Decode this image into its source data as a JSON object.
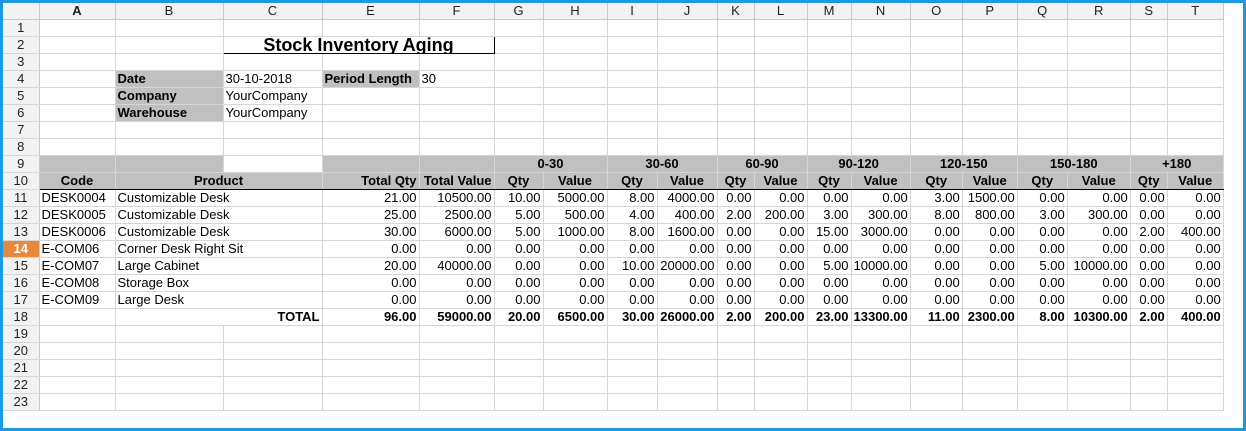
{
  "columns": [
    "A",
    "B",
    "C",
    "E",
    "F",
    "G",
    "H",
    "I",
    "J",
    "K",
    "L",
    "M",
    "N",
    "O",
    "P",
    "Q",
    "R",
    "S",
    "T"
  ],
  "rows": [
    "1",
    "2",
    "3",
    "4",
    "5",
    "6",
    "7",
    "8",
    "9",
    "10",
    "11",
    "12",
    "13",
    "14",
    "15",
    "16",
    "17",
    "18",
    "19",
    "20",
    "21",
    "22",
    "23"
  ],
  "selected": {
    "column": "A",
    "row": "14"
  },
  "title": "Stock Inventory Aging",
  "info": {
    "date_label": "Date",
    "date_value": "30-10-2018",
    "company_label": "Company",
    "company_value": "YourCompany",
    "warehouse_label": "Warehouse",
    "warehouse_value": "YourCompany",
    "period_label": "Period Length",
    "period_value": "30"
  },
  "headers": {
    "code": "Code",
    "product": "Product",
    "total_qty": "Total Qty",
    "total_value": "Total Value",
    "periods": [
      "0-30",
      "30-60",
      "60-90",
      "90-120",
      "120-150",
      "150-180",
      "+180"
    ],
    "qty": "Qty",
    "value": "Value"
  },
  "items": [
    {
      "code": "DESK0004",
      "product": "Customizable Desk",
      "total_qty": "21.00",
      "total_value": "10500.00",
      "buckets": [
        "10.00",
        "5000.00",
        "8.00",
        "4000.00",
        "0.00",
        "0.00",
        "0.00",
        "0.00",
        "3.00",
        "1500.00",
        "0.00",
        "0.00",
        "0.00",
        "0.00"
      ]
    },
    {
      "code": "DESK0005",
      "product": "Customizable Desk",
      "total_qty": "25.00",
      "total_value": "2500.00",
      "buckets": [
        "5.00",
        "500.00",
        "4.00",
        "400.00",
        "2.00",
        "200.00",
        "3.00",
        "300.00",
        "8.00",
        "800.00",
        "3.00",
        "300.00",
        "0.00",
        "0.00"
      ]
    },
    {
      "code": "DESK0006",
      "product": "Customizable Desk",
      "total_qty": "30.00",
      "total_value": "6000.00",
      "buckets": [
        "5.00",
        "1000.00",
        "8.00",
        "1600.00",
        "0.00",
        "0.00",
        "15.00",
        "3000.00",
        "0.00",
        "0.00",
        "0.00",
        "0.00",
        "2.00",
        "400.00"
      ]
    },
    {
      "code": "E-COM06",
      "product": "Corner Desk Right Sit",
      "total_qty": "0.00",
      "total_value": "0.00",
      "buckets": [
        "0.00",
        "0.00",
        "0.00",
        "0.00",
        "0.00",
        "0.00",
        "0.00",
        "0.00",
        "0.00",
        "0.00",
        "0.00",
        "0.00",
        "0.00",
        "0.00"
      ]
    },
    {
      "code": "E-COM07",
      "product": "Large Cabinet",
      "total_qty": "20.00",
      "total_value": "40000.00",
      "buckets": [
        "0.00",
        "0.00",
        "10.00",
        "20000.00",
        "0.00",
        "0.00",
        "5.00",
        "10000.00",
        "0.00",
        "0.00",
        "5.00",
        "10000.00",
        "0.00",
        "0.00"
      ]
    },
    {
      "code": "E-COM08",
      "product": "Storage Box",
      "total_qty": "0.00",
      "total_value": "0.00",
      "buckets": [
        "0.00",
        "0.00",
        "0.00",
        "0.00",
        "0.00",
        "0.00",
        "0.00",
        "0.00",
        "0.00",
        "0.00",
        "0.00",
        "0.00",
        "0.00",
        "0.00"
      ]
    },
    {
      "code": "E-COM09",
      "product": "Large Desk",
      "total_qty": "0.00",
      "total_value": "0.00",
      "buckets": [
        "0.00",
        "0.00",
        "0.00",
        "0.00",
        "0.00",
        "0.00",
        "0.00",
        "0.00",
        "0.00",
        "0.00",
        "0.00",
        "0.00",
        "0.00",
        "0.00"
      ]
    }
  ],
  "total": {
    "label": "TOTAL",
    "total_qty": "96.00",
    "total_value": "59000.00",
    "buckets": [
      "20.00",
      "6500.00",
      "30.00",
      "26000.00",
      "2.00",
      "200.00",
      "23.00",
      "13300.00",
      "11.00",
      "2300.00",
      "8.00",
      "10300.00",
      "2.00",
      "400.00"
    ]
  }
}
